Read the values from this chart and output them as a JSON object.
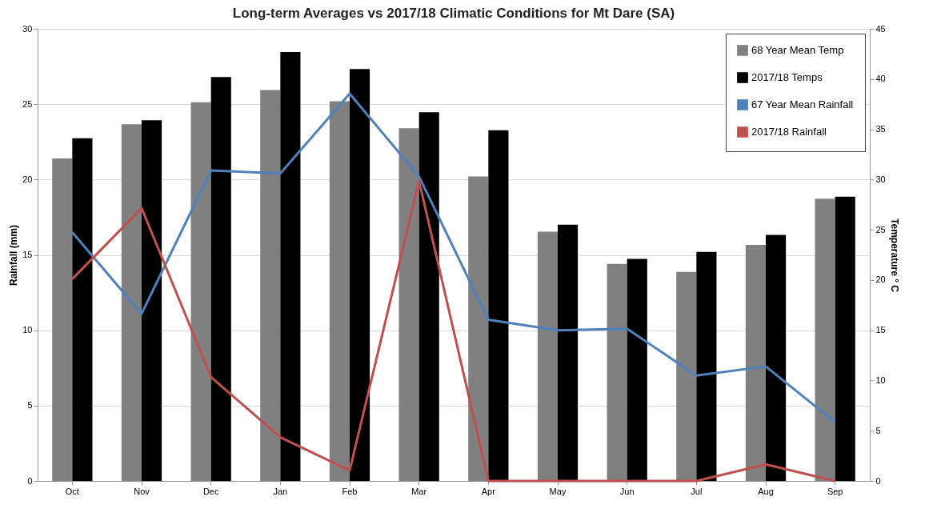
{
  "chart_data": {
    "type": "bar",
    "title": "Long-term Averages vs 2017/18 Climatic Conditions for Mt Dare (SA)",
    "ylabel": "Rainfall (mm)",
    "y2label": "Temperature ° C",
    "categories": [
      "Oct",
      "Nov",
      "Dec",
      "Jan",
      "Feb",
      "Mar",
      "Apr",
      "May",
      "Jun",
      "Jul",
      "Aug",
      "Sep"
    ],
    "series": [
      {
        "name": "68 Year Mean Temp",
        "axis": "y2",
        "color": "#808080",
        "values": [
          32.1,
          35.5,
          37.7,
          38.9,
          37.8,
          35.1,
          30.3,
          24.8,
          21.6,
          20.8,
          23.5,
          28.1
        ]
      },
      {
        "name": "2017/18 Temps",
        "axis": "y2",
        "color": "#000000",
        "values": [
          34.1,
          35.9,
          40.2,
          42.7,
          41.0,
          36.7,
          34.9,
          25.5,
          22.1,
          22.8,
          24.5,
          28.3
        ]
      },
      {
        "name": "67 Year Mean Rainfall",
        "type": "line",
        "color": "#4f81bd",
        "values": [
          16.5,
          11.1,
          20.6,
          20.4,
          25.7,
          20.2,
          10.7,
          10.0,
          10.1,
          7.0,
          7.6,
          3.9
        ]
      },
      {
        "name": "2017/18 Rainfall",
        "type": "line",
        "color": "#c0504d",
        "values": [
          13.4,
          18.1,
          6.9,
          2.9,
          0.7,
          19.9,
          0,
          0,
          0,
          0,
          1.1,
          0
        ]
      }
    ],
    "ylim": [
      0,
      30
    ],
    "yticks": [
      0,
      5,
      10,
      15,
      20,
      25,
      30
    ],
    "y2lim": [
      0,
      45
    ],
    "y2ticks": [
      0,
      5,
      10,
      15,
      20,
      25,
      30,
      35,
      40,
      45
    ],
    "grid": "y",
    "legend": "top right",
    "marker": "none",
    "line_style": "solid"
  }
}
